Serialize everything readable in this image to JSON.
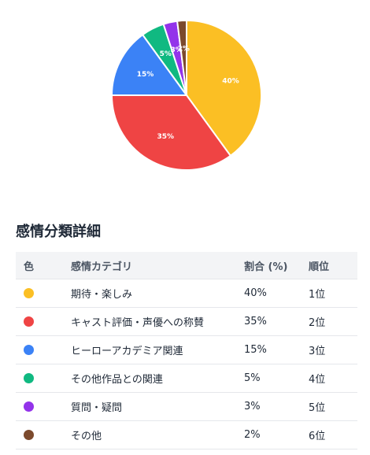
{
  "chart_data": {
    "type": "pie",
    "slices": [
      {
        "label": "40%",
        "value": 40,
        "color": "#fbbf24"
      },
      {
        "label": "35%",
        "value": 35,
        "color": "#ef4444"
      },
      {
        "label": "15%",
        "value": 15,
        "color": "#3b82f6"
      },
      {
        "label": "5%",
        "value": 5,
        "color": "#10b981"
      },
      {
        "label": "3%",
        "value": 3,
        "color": "#9333ea"
      },
      {
        "label": "2%",
        "value": 2,
        "color": "#7c4a2d"
      }
    ]
  },
  "section": {
    "title": "感情分類詳細"
  },
  "table": {
    "headers": {
      "color": "色",
      "category": "感情カテゴリ",
      "ratio": "割合 (%)",
      "rank": "順位"
    },
    "rows": [
      {
        "color": "#fbbf24",
        "category": "期待・楽しみ",
        "ratio": "40%",
        "rank": "1位"
      },
      {
        "color": "#ef4444",
        "category": "キャスト評価・声優への称賛",
        "ratio": "35%",
        "rank": "2位"
      },
      {
        "color": "#3b82f6",
        "category": "ヒーローアカデミア関連",
        "ratio": "15%",
        "rank": "3位"
      },
      {
        "color": "#10b981",
        "category": "その他作品との関連",
        "ratio": "5%",
        "rank": "4位"
      },
      {
        "color": "#9333ea",
        "category": "質問・疑問",
        "ratio": "3%",
        "rank": "5位"
      },
      {
        "color": "#7c4a2d",
        "category": "その他",
        "ratio": "2%",
        "rank": "6位"
      }
    ]
  }
}
